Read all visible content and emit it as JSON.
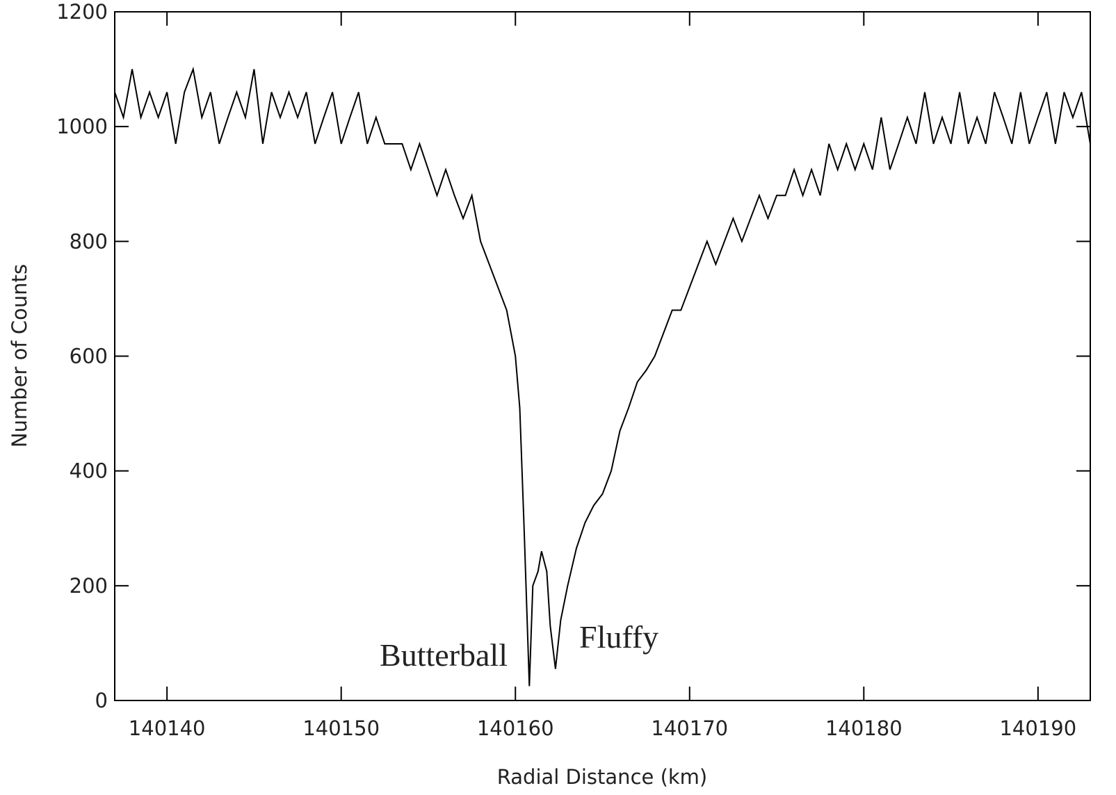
{
  "chart_data": {
    "type": "line",
    "xlabel": "Radial Distance (km)",
    "ylabel": "Number of Counts",
    "annotations": [
      "Butterball",
      "Fluffy"
    ],
    "annotation_color": "#ff0000",
    "xlim": [
      140137,
      140193
    ],
    "ylim": [
      0,
      1200
    ],
    "xticks": [
      140140,
      140150,
      140160,
      140170,
      140180,
      140190
    ],
    "yticks": [
      0,
      200,
      400,
      600,
      800,
      1000,
      1200
    ],
    "grid": false,
    "x": [
      140137,
      140137.5,
      140138,
      140138.5,
      140139,
      140139.5,
      140140,
      140140.5,
      140141,
      140141.5,
      140142,
      140142.5,
      140143,
      140143.5,
      140144,
      140144.5,
      140145,
      140145.5,
      140146,
      140146.5,
      140147,
      140147.5,
      140148,
      140148.5,
      140149,
      140149.5,
      140150,
      140150.5,
      140151,
      140151.5,
      140152,
      140152.5,
      140153,
      140153.5,
      140154,
      140154.5,
      140155,
      140155.5,
      140156,
      140156.5,
      140157,
      140157.5,
      140158,
      140158.5,
      140159,
      140159.5,
      140159.75,
      140160,
      140160.25,
      140160.5,
      140160.8,
      140161,
      140161.3,
      140161.5,
      140161.8,
      140162,
      140162.3,
      140162.6,
      140163,
      140163.5,
      140164,
      140164.5,
      140165,
      140165.5,
      140166,
      140166.5,
      140167,
      140167.5,
      140168,
      140168.5,
      140169,
      140169.5,
      140170,
      140170.5,
      140171,
      140171.5,
      140172,
      140172.5,
      140173,
      140173.5,
      140174,
      140174.5,
      140175,
      140175.5,
      140176,
      140176.5,
      140177,
      140177.5,
      140178,
      140178.5,
      140179,
      140179.5,
      140180,
      140180.5,
      140181,
      140181.5,
      140182,
      140182.5,
      140183,
      140183.5,
      140184,
      140184.5,
      140185,
      140185.5,
      140186,
      140186.5,
      140187,
      140187.5,
      140188,
      140188.5,
      140189,
      140189.5,
      140190,
      140190.5,
      140191,
      140191.5,
      140192,
      140192.5,
      140193
    ],
    "series": [
      {
        "color": "#000000",
        "values": [
          1060,
          1016,
          1100,
          1016,
          1060,
          1016,
          1060,
          970,
          1060,
          1100,
          1016,
          1060,
          970,
          1016,
          1060,
          1016,
          1100,
          970,
          1060,
          1016,
          1060,
          1016,
          1060,
          970,
          1016,
          1060,
          970,
          1016,
          1060,
          970,
          1016,
          970,
          970,
          970,
          925,
          970,
          925,
          880,
          925,
          880,
          840,
          880,
          800,
          760,
          720,
          680,
          640,
          600,
          510,
          300,
          25,
          200,
          225,
          260,
          225,
          130,
          55,
          140,
          200,
          265,
          310,
          340,
          360,
          400,
          470,
          510,
          555,
          575,
          600,
          640,
          680,
          680,
          720,
          760,
          800,
          760,
          800,
          840,
          800,
          840,
          880,
          840,
          880,
          880,
          925,
          880,
          925,
          880,
          970,
          925,
          970,
          925,
          970,
          925,
          1016,
          925,
          970,
          1016,
          970,
          1060,
          970,
          1016,
          970,
          1060,
          970,
          1016,
          970,
          1060,
          1016,
          970,
          1060,
          970,
          1016,
          1060,
          970,
          1060,
          1016,
          1060,
          970
        ]
      }
    ]
  }
}
